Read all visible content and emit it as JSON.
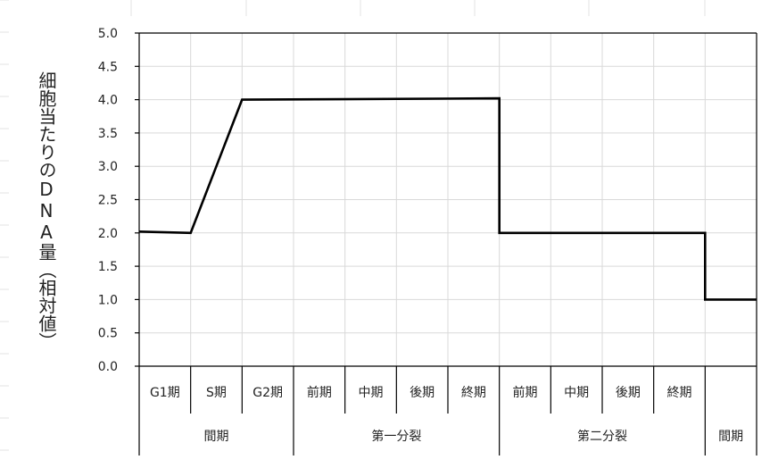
{
  "chart_data": {
    "type": "line",
    "ylabel": "細胞当たりのDNA量（相対値）",
    "ylim": [
      0,
      5
    ],
    "ytick_step": 0.5,
    "yticks": [
      "0.0",
      "0.5",
      "1.0",
      "1.5",
      "2.0",
      "2.5",
      "3.0",
      "3.5",
      "4.0",
      "4.5",
      "5.0"
    ],
    "grid": true,
    "categories": [
      "G1期",
      "S期",
      "G2期",
      "前期",
      "中期",
      "後期",
      "終期",
      "前期",
      "中期",
      "後期",
      "終期",
      ""
    ],
    "groups": [
      {
        "label": "間期",
        "span": 3
      },
      {
        "label": "第一分裂",
        "span": 4
      },
      {
        "label": "第二分裂",
        "span": 4
      },
      {
        "label": "間期",
        "span": 1
      }
    ],
    "series": [
      {
        "comment_units": "x measured in category-slot units from left edge (0 to 12)",
        "x": [
          0,
          1,
          2,
          7,
          7,
          11,
          11,
          12
        ],
        "y": [
          2.02,
          2.0,
          4.0,
          4.02,
          2.0,
          2.0,
          1.0,
          1.0
        ]
      }
    ]
  }
}
